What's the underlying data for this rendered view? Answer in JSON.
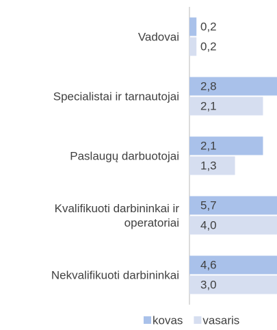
{
  "chart_data": {
    "type": "barh",
    "categories": [
      "Vadovai",
      "Specialistai ir tarnautojai",
      "Paslaugų darbuotojai",
      "Kvalifikuoti darbininkai ir operatoriai",
      "Nekvalifikuoti darbininkai"
    ],
    "series": [
      {
        "name": "kovas",
        "color": "#a9c1ea",
        "values": [
          0.2,
          2.8,
          2.1,
          5.7,
          4.6
        ],
        "value_labels": [
          "0,2",
          "2,8",
          "2,1",
          "5,7",
          "4,6"
        ]
      },
      {
        "name": "vasaris",
        "color": "#d6def0",
        "values": [
          0.2,
          2.1,
          1.3,
          4.0,
          3.0
        ],
        "value_labels": [
          "0,2",
          "2,1",
          "1,3",
          "4,0",
          "3,0"
        ]
      }
    ],
    "xlim": [
      0,
      2.5
    ],
    "legend": "bottom"
  }
}
